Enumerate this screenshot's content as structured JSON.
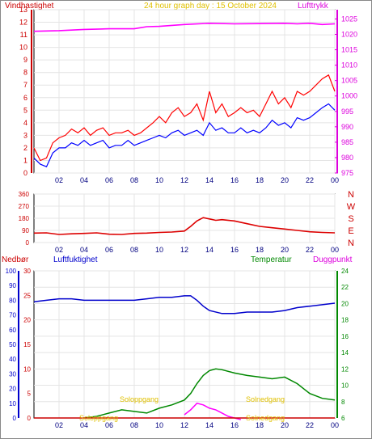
{
  "header": {
    "left_label": "Vindhastighet",
    "center_label": "24 hour graph day : 15 October 2024",
    "right_label": "Lufttrykk"
  },
  "hours": [
    "02",
    "04",
    "06",
    "08",
    "10",
    "12",
    "14",
    "16",
    "18",
    "20",
    "22",
    "00"
  ],
  "panel2": {
    "left_ticks": [
      "360",
      "270",
      "180",
      "90",
      "0"
    ],
    "compass": [
      "N",
      "W",
      "S",
      "E",
      "N"
    ]
  },
  "panel3": {
    "labels": {
      "rain": "Nedbør",
      "humidity": "Luftfuktighet",
      "temperature": "Temperatur",
      "dewpoint": "Duggpunkt"
    },
    "annotations": {
      "sunrise_top": "Soloppgang",
      "sunrise_bottom": "Soloppgang",
      "sunset_top": "Solnedgang",
      "sunset_bottom": "Solnedgang"
    }
  },
  "chart_data": [
    {
      "type": "line",
      "title": "24 hour graph day : 15 October 2024",
      "y_left_label": "Vindhastighet",
      "y_right_label": "Lufttrykk",
      "x_ticks": [
        "02",
        "04",
        "06",
        "08",
        "10",
        "12",
        "14",
        "16",
        "18",
        "20",
        "22",
        "00"
      ],
      "y_left_ticks": [
        "0",
        "1",
        "2",
        "3",
        "4",
        "5",
        "6",
        "7",
        "8",
        "9",
        "10",
        "11",
        "12",
        "13"
      ],
      "y_right_ticks": [
        "975",
        "980",
        "985",
        "990",
        "995",
        "1000",
        "1005",
        "1010",
        "1015",
        "1020",
        "1025"
      ],
      "ylim_left": [
        0,
        13
      ],
      "ylim_right": [
        975,
        1028
      ],
      "series": [
        {
          "color": "#ff0000",
          "axis": "left",
          "x": [
            0.0,
            0.5,
            1.0,
            1.5,
            2.0,
            2.5,
            3.0,
            3.5,
            4.0,
            4.5,
            5.0,
            5.5,
            6.0,
            6.5,
            7.0,
            7.5,
            8.0,
            8.5,
            9.0,
            9.5,
            10.0,
            10.5,
            11.0,
            11.5,
            12.0,
            12.5,
            13.0,
            13.5,
            14.0,
            14.5,
            15.0,
            15.5,
            16.0,
            16.5,
            17.0,
            17.5,
            18.0,
            18.5,
            19.0,
            19.5,
            20.0,
            20.5,
            21.0,
            21.5,
            22.0,
            22.5,
            23.0,
            23.5,
            24.0
          ],
          "y": [
            2.0,
            1.0,
            1.2,
            2.4,
            2.8,
            3.0,
            3.5,
            3.2,
            3.6,
            3.0,
            3.4,
            3.6,
            3.0,
            3.2,
            3.2,
            3.4,
            3.0,
            3.2,
            3.6,
            4.0,
            4.5,
            4.0,
            4.8,
            5.2,
            4.5,
            4.8,
            5.5,
            4.2,
            6.5,
            4.8,
            5.5,
            4.5,
            4.8,
            5.2,
            4.8,
            5.0,
            4.5,
            5.5,
            6.5,
            5.5,
            6.0,
            5.2,
            6.5,
            6.2,
            6.5,
            7.0,
            7.5,
            7.8,
            6.5
          ]
        },
        {
          "color": "#0000ff",
          "axis": "left",
          "x": [
            0.0,
            0.5,
            1.0,
            1.5,
            2.0,
            2.5,
            3.0,
            3.5,
            4.0,
            4.5,
            5.0,
            5.5,
            6.0,
            6.5,
            7.0,
            7.5,
            8.0,
            8.5,
            9.0,
            9.5,
            10.0,
            10.5,
            11.0,
            11.5,
            12.0,
            12.5,
            13.0,
            13.5,
            14.0,
            14.5,
            15.0,
            15.5,
            16.0,
            16.5,
            17.0,
            17.5,
            18.0,
            18.5,
            19.0,
            19.5,
            20.0,
            20.5,
            21.0,
            21.5,
            22.0,
            22.5,
            23.0,
            23.5,
            24.0
          ],
          "y": [
            1.2,
            0.7,
            0.5,
            1.6,
            2.0,
            2.0,
            2.4,
            2.2,
            2.6,
            2.2,
            2.4,
            2.6,
            2.0,
            2.2,
            2.2,
            2.6,
            2.2,
            2.4,
            2.6,
            2.8,
            3.0,
            2.8,
            3.2,
            3.4,
            3.0,
            3.2,
            3.4,
            3.0,
            4.0,
            3.4,
            3.6,
            3.2,
            3.2,
            3.6,
            3.2,
            3.4,
            3.2,
            3.6,
            4.2,
            3.8,
            4.0,
            3.6,
            4.4,
            4.2,
            4.4,
            4.8,
            5.2,
            5.5,
            5.0
          ]
        },
        {
          "color": "#ff00ff",
          "axis": "right",
          "x": [
            0.0,
            2.0,
            4.0,
            6.0,
            8.0,
            9.0,
            10.0,
            12.0,
            14.0,
            16.0,
            18.0,
            20.0,
            21.0,
            22.0,
            23.0,
            24.0
          ],
          "y": [
            1021.0,
            1021.2,
            1021.6,
            1021.8,
            1021.8,
            1022.5,
            1022.6,
            1023.2,
            1023.6,
            1023.4,
            1023.5,
            1023.6,
            1023.4,
            1023.6,
            1023.2,
            1023.4
          ]
        }
      ]
    },
    {
      "type": "line",
      "y_left_ticks": [
        "360",
        "270",
        "180",
        "90",
        "0"
      ],
      "y_right_ticks": [
        "N",
        "W",
        "S",
        "E",
        "N"
      ],
      "ylim": [
        0,
        360
      ],
      "series": [
        {
          "color": "#dd0000",
          "x": [
            0.0,
            1.0,
            2.0,
            3.0,
            4.0,
            5.0,
            6.0,
            7.0,
            8.0,
            9.0,
            10.0,
            11.0,
            12.0,
            12.5,
            13.0,
            13.5,
            14.0,
            14.5,
            15.0,
            16.0,
            17.0,
            18.0,
            19.0,
            20.0,
            21.0,
            22.0,
            23.0,
            24.0
          ],
          "y": [
            70,
            72,
            60,
            65,
            68,
            72,
            62,
            60,
            68,
            70,
            75,
            78,
            85,
            120,
            160,
            185,
            175,
            165,
            170,
            160,
            140,
            120,
            110,
            100,
            90,
            80,
            75,
            72
          ]
        }
      ]
    },
    {
      "type": "line",
      "y_ticks_rain": [
        "0",
        "10",
        "20",
        "30",
        "40",
        "50",
        "60",
        "70",
        "80",
        "90",
        "100"
      ],
      "y_ticks_humidity": [
        "0",
        "5",
        "10",
        "15",
        "20",
        "25",
        "30"
      ],
      "y_ticks_temperature": [
        "6",
        "8",
        "10",
        "12",
        "14",
        "16",
        "18",
        "20",
        "22",
        "24"
      ],
      "ylim_rain": [
        0,
        100
      ],
      "ylim_humidity": [
        0,
        30
      ],
      "ylim_temperature": [
        6,
        24
      ],
      "series": [
        {
          "color": "#0000cc",
          "axis": "humidity",
          "x": [
            0.0,
            1.0,
            2.0,
            3.0,
            4.0,
            5.0,
            6.0,
            7.0,
            8.0,
            9.0,
            10.0,
            11.0,
            12.0,
            12.5,
            13.0,
            13.5,
            14.0,
            15.0,
            16.0,
            17.0,
            18.0,
            19.0,
            20.0,
            21.0,
            22.0,
            23.0,
            24.0
          ],
          "y": [
            79,
            80,
            81,
            81,
            80,
            80,
            80,
            80,
            80,
            81,
            82,
            82,
            83,
            83,
            80,
            76,
            73,
            71,
            71,
            72,
            72,
            72,
            73,
            75,
            76,
            77,
            78
          ]
        },
        {
          "color": "#008800",
          "axis": "temperature",
          "x": [
            4.0,
            5.0,
            6.0,
            7.0,
            8.0,
            9.0,
            10.0,
            11.0,
            12.0,
            12.5,
            13.0,
            13.5,
            14.0,
            14.5,
            15.0,
            16.0,
            17.0,
            18.0,
            19.0,
            20.0,
            21.0,
            22.0,
            23.0,
            24.0
          ],
          "y": [
            6.0,
            6.2,
            6.6,
            7.0,
            6.8,
            6.6,
            7.2,
            7.6,
            8.2,
            9.0,
            10.2,
            11.2,
            11.8,
            12.0,
            11.9,
            11.5,
            11.2,
            11.0,
            10.8,
            11.0,
            10.2,
            9.0,
            8.4,
            8.2
          ]
        },
        {
          "color": "#ff00ff",
          "axis": "temperature",
          "x": [
            12.0,
            12.5,
            13.0,
            13.5,
            14.0,
            14.5,
            15.0,
            15.5,
            16.0,
            16.5
          ],
          "y": [
            6.4,
            7.0,
            7.8,
            7.6,
            7.2,
            7.0,
            6.6,
            6.2,
            6.0,
            5.8
          ]
        },
        {
          "color": "#cc0000",
          "axis": "rain",
          "x": [
            0.0,
            24.0
          ],
          "y": [
            0,
            0
          ]
        }
      ]
    }
  ]
}
